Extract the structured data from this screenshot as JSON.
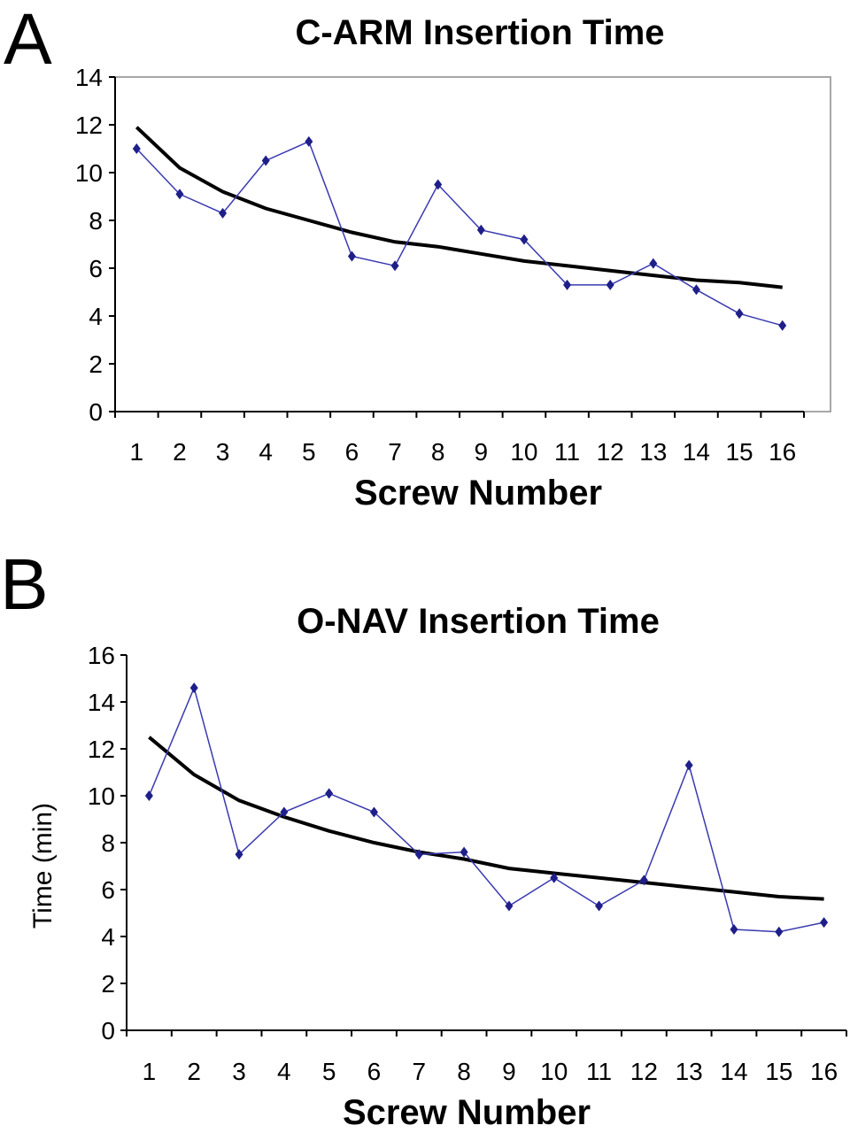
{
  "panels": [
    {
      "letter": "A"
    },
    {
      "letter": "B"
    }
  ],
  "colors": {
    "series": "#3a3ab0",
    "marker": "#1f1f8a",
    "trend": "#000000",
    "frame": "#8a8a8a"
  },
  "chart_data": [
    {
      "type": "line",
      "title": "C-ARM Insertion Time",
      "xlabel": "Screw Number",
      "ylabel": "",
      "categories": [
        "1",
        "2",
        "3",
        "4",
        "5",
        "6",
        "7",
        "8",
        "9",
        "10",
        "11",
        "12",
        "13",
        "14",
        "15",
        "16"
      ],
      "yticks": [
        "0",
        "2",
        "4",
        "6",
        "8",
        "10",
        "12",
        "14"
      ],
      "ylim": [
        0,
        14
      ],
      "series": [
        {
          "values": [
            11.0,
            9.1,
            8.3,
            10.5,
            11.3,
            6.5,
            6.1,
            9.5,
            7.6,
            7.2,
            5.3,
            5.3,
            6.2,
            5.1,
            4.1,
            3.6
          ],
          "marker": "diamond"
        },
        {
          "type": "trend",
          "curve": "logarithmic",
          "values": [
            11.9,
            10.2,
            9.2,
            8.5,
            8.0,
            7.5,
            7.1,
            6.9,
            6.6,
            6.3,
            6.1,
            5.9,
            5.7,
            5.5,
            5.4,
            5.2
          ]
        }
      ],
      "grid": false
    },
    {
      "type": "line",
      "title": "O-NAV Insertion Time",
      "xlabel": "Screw Number",
      "ylabel": "Time (min)",
      "categories": [
        "1",
        "2",
        "3",
        "4",
        "5",
        "6",
        "7",
        "8",
        "9",
        "10",
        "11",
        "12",
        "13",
        "14",
        "15",
        "16"
      ],
      "yticks": [
        "0",
        "2",
        "4",
        "6",
        "8",
        "10",
        "12",
        "14",
        "16"
      ],
      "ylim": [
        0,
        16
      ],
      "series": [
        {
          "values": [
            10.0,
            14.6,
            7.5,
            9.3,
            10.1,
            9.3,
            7.5,
            7.6,
            5.3,
            6.5,
            5.3,
            6.4,
            11.3,
            4.3,
            4.2,
            4.6
          ],
          "marker": "diamond"
        },
        {
          "type": "trend",
          "curve": "logarithmic",
          "values": [
            12.5,
            10.9,
            9.8,
            9.1,
            8.5,
            8.0,
            7.6,
            7.3,
            6.9,
            6.7,
            6.5,
            6.3,
            6.1,
            5.9,
            5.7,
            5.6
          ]
        }
      ],
      "grid": false
    }
  ]
}
